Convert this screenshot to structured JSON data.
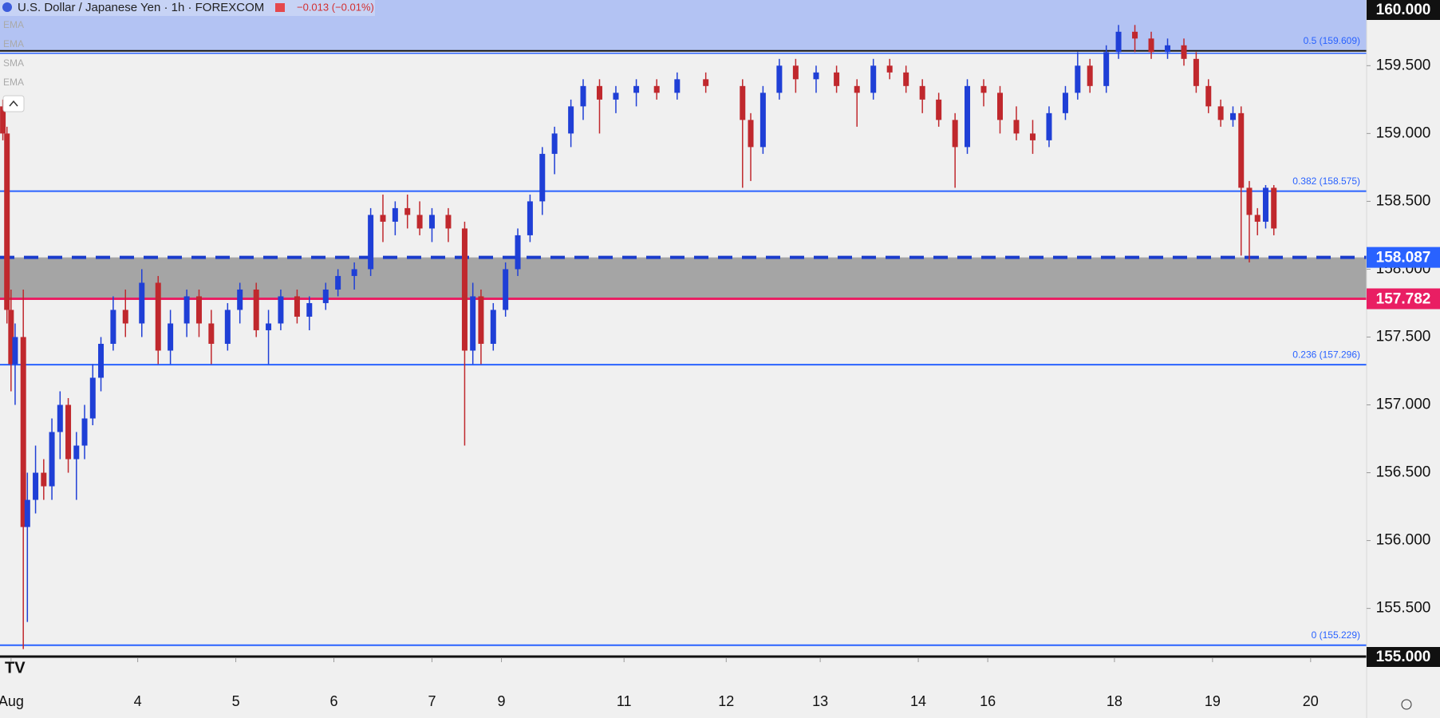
{
  "header": {
    "symbol": "U.S. Dollar / Japanese Yen · 1h · FOREXCOM",
    "change": "−0.013 (−0.01%)",
    "indicators": [
      "EMA",
      "EMA",
      "SMA",
      "EMA"
    ]
  },
  "chart_data": {
    "type": "candlestick",
    "up_color": "#1f3fd6",
    "down_color": "#c0282d",
    "xlim": [
      -2.7,
      331.7
    ],
    "xticks": [
      {
        "value": 0,
        "label": "Aug"
      },
      {
        "value": 31,
        "label": "4"
      },
      {
        "value": 55,
        "label": "5"
      },
      {
        "value": 79,
        "label": "6"
      },
      {
        "value": 103,
        "label": "7"
      },
      {
        "value": 120,
        "label": "9"
      },
      {
        "value": 150,
        "label": "11"
      },
      {
        "value": 175,
        "label": "12"
      },
      {
        "value": 198,
        "label": "13"
      },
      {
        "value": 222,
        "label": "14"
      },
      {
        "value": 239,
        "label": "16"
      },
      {
        "value": 270,
        "label": "18"
      },
      {
        "value": 294,
        "label": "19"
      },
      {
        "value": 318,
        "label": "20"
      }
    ],
    "ylim": [
      155.145,
      159.984
    ],
    "yticks": [
      {
        "value": 155.5,
        "label": "155.500"
      },
      {
        "value": 156,
        "label": "156.000"
      },
      {
        "value": 156.5,
        "label": "156.500"
      },
      {
        "value": 157,
        "label": "157.000"
      },
      {
        "value": 157.5,
        "label": "157.500"
      },
      {
        "value": 158,
        "label": "158.000"
      },
      {
        "value": 158.5,
        "label": "158.500"
      },
      {
        "value": 159,
        "label": "159.000"
      },
      {
        "value": 159.5,
        "label": "159.500"
      }
    ],
    "edge_labels": [
      {
        "value": 160,
        "label": "160.000"
      },
      {
        "value": 155,
        "label": "155.000"
      }
    ],
    "fib_color": "#2962ff",
    "upper_zone_color": "#b3c3f3",
    "fib_levels": [
      {
        "value": 159.609,
        "label": "0.5 (159.609)"
      },
      {
        "value": 158.575,
        "label": "0.382 (158.575)"
      },
      {
        "value": 157.296,
        "label": "0.236 (157.296)"
      },
      {
        "value": 155.229,
        "label": "0 (155.229)"
      }
    ],
    "levels": [
      {
        "value": 158.087,
        "label": "158.087",
        "color": "#2962ff",
        "style": "dashed"
      },
      {
        "value": 157.782,
        "label": "157.782",
        "color": "#e91e63",
        "style": "solid"
      }
    ],
    "zone_color": "#a5a5a5",
    "x": [
      -2,
      -1,
      0,
      1,
      3,
      4,
      6,
      8,
      10,
      12,
      14,
      16,
      18,
      20,
      22,
      25,
      28,
      32,
      36,
      39,
      43,
      46,
      49,
      53,
      56,
      60,
      63,
      66,
      70,
      73,
      77,
      80,
      84,
      88,
      91,
      94,
      97,
      100,
      103,
      107,
      111,
      113,
      115,
      118,
      121,
      124,
      127,
      130,
      133,
      137,
      140,
      144,
      148,
      153,
      158,
      163,
      170,
      179,
      181,
      184,
      188,
      192,
      197,
      202,
      207,
      211,
      215,
      219,
      223,
      227,
      231,
      234,
      238,
      242,
      246,
      250,
      254,
      258,
      261,
      264,
      268,
      271,
      275,
      279,
      283,
      287,
      290,
      293,
      296,
      299,
      301,
      303,
      305,
      307,
      309
    ],
    "ohlc": [
      [
        159.2,
        159.25,
        158.95,
        159.0
      ],
      [
        159.0,
        159.05,
        157.6,
        157.7
      ],
      [
        157.7,
        157.85,
        157.1,
        157.3
      ],
      [
        157.3,
        157.6,
        157.0,
        157.5
      ],
      [
        157.5,
        157.85,
        155.2,
        156.1
      ],
      [
        156.1,
        156.5,
        155.4,
        156.3
      ],
      [
        156.3,
        156.7,
        156.2,
        156.5
      ],
      [
        156.5,
        156.6,
        156.3,
        156.4
      ],
      [
        156.4,
        156.9,
        156.3,
        156.8
      ],
      [
        156.8,
        157.1,
        156.6,
        157.0
      ],
      [
        157.0,
        157.05,
        156.5,
        156.6
      ],
      [
        156.6,
        156.8,
        156.3,
        156.7
      ],
      [
        156.7,
        157.0,
        156.6,
        156.9
      ],
      [
        156.9,
        157.3,
        156.85,
        157.2
      ],
      [
        157.2,
        157.5,
        157.1,
        157.45
      ],
      [
        157.45,
        157.8,
        157.4,
        157.7
      ],
      [
        157.7,
        157.85,
        157.5,
        157.6
      ],
      [
        157.6,
        158.0,
        157.5,
        157.9
      ],
      [
        157.9,
        157.95,
        157.3,
        157.4
      ],
      [
        157.4,
        157.7,
        157.3,
        157.6
      ],
      [
        157.6,
        157.85,
        157.5,
        157.8
      ],
      [
        157.8,
        157.85,
        157.5,
        157.6
      ],
      [
        157.6,
        157.7,
        157.3,
        157.45
      ],
      [
        157.45,
        157.75,
        157.4,
        157.7
      ],
      [
        157.7,
        157.9,
        157.6,
        157.85
      ],
      [
        157.85,
        157.9,
        157.5,
        157.55
      ],
      [
        157.55,
        157.7,
        157.3,
        157.6
      ],
      [
        157.6,
        157.85,
        157.55,
        157.8
      ],
      [
        157.8,
        157.85,
        157.6,
        157.65
      ],
      [
        157.65,
        157.8,
        157.55,
        157.75
      ],
      [
        157.75,
        157.9,
        157.7,
        157.85
      ],
      [
        157.85,
        158.0,
        157.8,
        157.95
      ],
      [
        157.95,
        158.05,
        157.85,
        158.0
      ],
      [
        158.0,
        158.45,
        157.95,
        158.4
      ],
      [
        158.4,
        158.55,
        158.2,
        158.35
      ],
      [
        158.35,
        158.5,
        158.25,
        158.45
      ],
      [
        158.45,
        158.55,
        158.3,
        158.4
      ],
      [
        158.4,
        158.5,
        158.25,
        158.3
      ],
      [
        158.3,
        158.45,
        158.2,
        158.4
      ],
      [
        158.4,
        158.45,
        158.2,
        158.3
      ],
      [
        158.3,
        158.35,
        156.7,
        157.4
      ],
      [
        157.4,
        157.9,
        157.3,
        157.8
      ],
      [
        157.8,
        157.85,
        157.3,
        157.45
      ],
      [
        157.45,
        157.75,
        157.4,
        157.7
      ],
      [
        157.7,
        158.05,
        157.65,
        158.0
      ],
      [
        158.0,
        158.3,
        157.95,
        158.25
      ],
      [
        158.25,
        158.55,
        158.2,
        158.5
      ],
      [
        158.5,
        158.9,
        158.4,
        158.85
      ],
      [
        158.85,
        159.05,
        158.7,
        159.0
      ],
      [
        159.0,
        159.25,
        158.9,
        159.2
      ],
      [
        159.2,
        159.4,
        159.1,
        159.35
      ],
      [
        159.35,
        159.4,
        159.0,
        159.25
      ],
      [
        159.25,
        159.35,
        159.15,
        159.3
      ],
      [
        159.3,
        159.4,
        159.2,
        159.35
      ],
      [
        159.35,
        159.4,
        159.25,
        159.3
      ],
      [
        159.3,
        159.45,
        159.25,
        159.4
      ],
      [
        159.4,
        159.45,
        159.3,
        159.35
      ],
      [
        159.35,
        159.4,
        158.6,
        159.1
      ],
      [
        159.1,
        159.15,
        158.65,
        158.9
      ],
      [
        158.9,
        159.35,
        158.85,
        159.3
      ],
      [
        159.3,
        159.55,
        159.25,
        159.5
      ],
      [
        159.5,
        159.55,
        159.3,
        159.4
      ],
      [
        159.4,
        159.5,
        159.3,
        159.45
      ],
      [
        159.45,
        159.5,
        159.3,
        159.35
      ],
      [
        159.35,
        159.4,
        159.05,
        159.3
      ],
      [
        159.3,
        159.55,
        159.25,
        159.5
      ],
      [
        159.5,
        159.55,
        159.4,
        159.45
      ],
      [
        159.45,
        159.5,
        159.3,
        159.35
      ],
      [
        159.35,
        159.4,
        159.15,
        159.25
      ],
      [
        159.25,
        159.3,
        159.05,
        159.1
      ],
      [
        159.1,
        159.15,
        158.6,
        158.9
      ],
      [
        158.9,
        159.4,
        158.85,
        159.35
      ],
      [
        159.35,
        159.4,
        159.2,
        159.3
      ],
      [
        159.3,
        159.35,
        159.0,
        159.1
      ],
      [
        159.1,
        159.2,
        158.95,
        159.0
      ],
      [
        159.0,
        159.1,
        158.85,
        158.95
      ],
      [
        158.95,
        159.2,
        158.9,
        159.15
      ],
      [
        159.15,
        159.35,
        159.1,
        159.3
      ],
      [
        159.3,
        159.6,
        159.25,
        159.5
      ],
      [
        159.5,
        159.55,
        159.3,
        159.35
      ],
      [
        159.35,
        159.65,
        159.3,
        159.6
      ],
      [
        159.6,
        159.8,
        159.55,
        159.75
      ],
      [
        159.75,
        159.8,
        159.6,
        159.7
      ],
      [
        159.7,
        159.75,
        159.55,
        159.6
      ],
      [
        159.6,
        159.7,
        159.55,
        159.65
      ],
      [
        159.65,
        159.7,
        159.5,
        159.55
      ],
      [
        159.55,
        159.6,
        159.3,
        159.35
      ],
      [
        159.35,
        159.4,
        159.15,
        159.2
      ],
      [
        159.2,
        159.25,
        159.05,
        159.1
      ],
      [
        159.1,
        159.2,
        159.05,
        159.15
      ],
      [
        159.15,
        159.2,
        158.1,
        158.6
      ],
      [
        158.6,
        158.65,
        158.05,
        158.4
      ],
      [
        158.4,
        158.45,
        158.25,
        158.35
      ],
      [
        158.35,
        158.62,
        158.3,
        158.6
      ],
      [
        158.6,
        158.62,
        158.25,
        158.3
      ]
    ]
  }
}
